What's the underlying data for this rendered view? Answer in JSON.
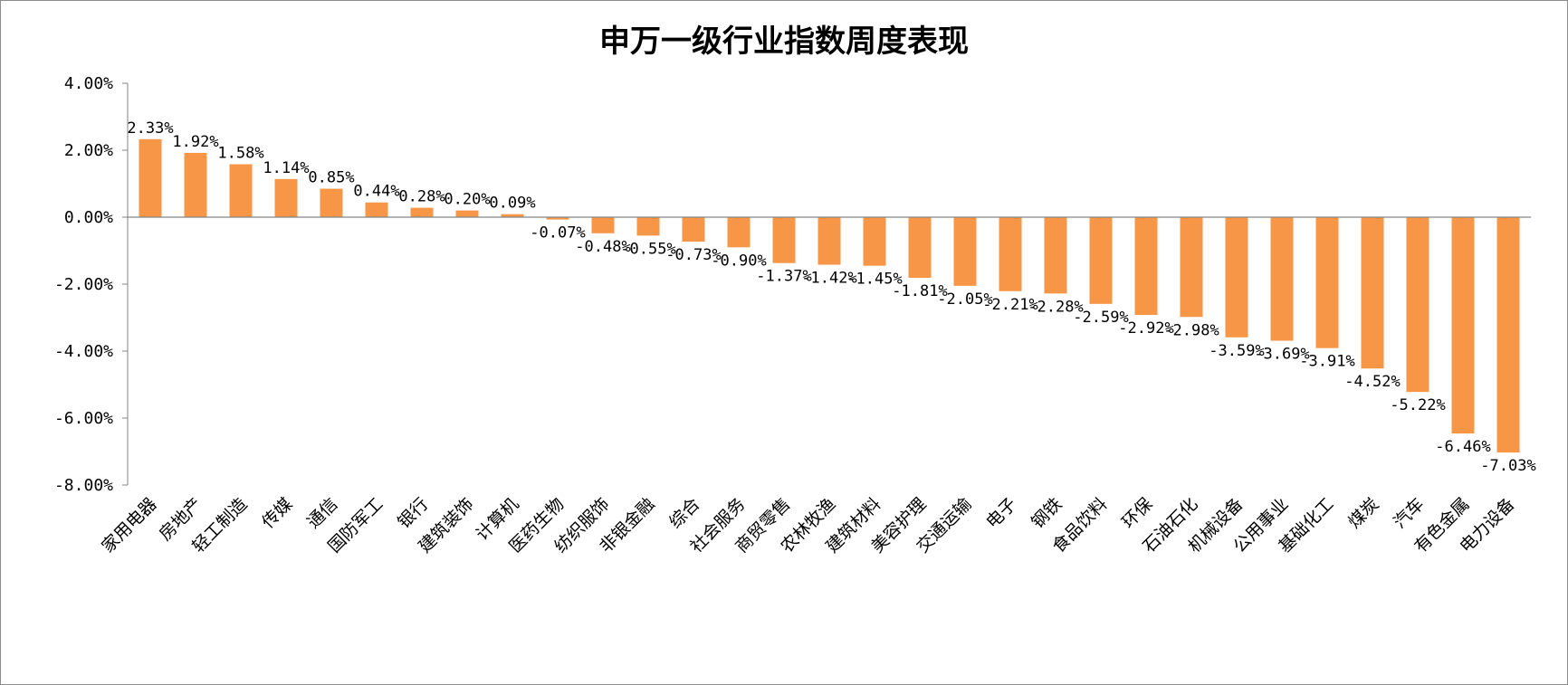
{
  "chart_data": {
    "type": "bar",
    "title": "申万一级行业指数周度表现",
    "xlabel": "",
    "ylabel": "",
    "ylim": [
      -8,
      4
    ],
    "ytick_values": [
      4,
      2,
      0,
      -2,
      -4,
      -6,
      -8
    ],
    "ytick_labels": [
      "4.00%",
      "2.00%",
      "0.00%",
      "-2.00%",
      "-4.00%",
      "-6.00%",
      "-8.00%"
    ],
    "grid": false,
    "legend": "none",
    "bar_color": "#F79646",
    "categories": [
      "家用电器",
      "房地产",
      "轻工制造",
      "传媒",
      "通信",
      "国防军工",
      "银行",
      "建筑装饰",
      "计算机",
      "医药生物",
      "纺织服饰",
      "非银金融",
      "综合",
      "社会服务",
      "商贸零售",
      "农林牧渔",
      "建筑材料",
      "美容护理",
      "交通运输",
      "电子",
      "钢铁",
      "食品饮料",
      "环保",
      "石油石化",
      "机械设备",
      "公用事业",
      "基础化工",
      "煤炭",
      "汽车",
      "有色金属",
      "电力设备"
    ],
    "values": [
      2.33,
      1.92,
      1.58,
      1.14,
      0.85,
      0.44,
      0.28,
      0.2,
      0.09,
      -0.07,
      -0.48,
      -0.55,
      -0.73,
      -0.9,
      -1.37,
      -1.42,
      -1.45,
      -1.81,
      -2.05,
      -2.21,
      -2.28,
      -2.59,
      -2.92,
      -2.98,
      -3.59,
      -3.69,
      -3.91,
      -4.52,
      -5.22,
      -6.46,
      -7.03
    ],
    "data_labels": [
      "2.33%",
      "1.92%",
      "1.58%",
      "1.14%",
      "0.85%",
      "0.44%",
      "0.28%",
      "0.20%",
      "0.09%",
      "-0.07%",
      "-0.48%",
      "-0.55%",
      "-0.73%",
      "-0.90%",
      "-1.37%",
      "-1.42%",
      "-1.45%",
      "-1.81%",
      "-2.05%",
      "-2.21%",
      "-2.28%",
      "-2.59%",
      "-2.92%",
      "-2.98%",
      "-3.59%",
      "-3.69%",
      "-3.91%",
      "-4.52%",
      "-5.22%",
      "-6.46%",
      "-7.03%"
    ]
  }
}
